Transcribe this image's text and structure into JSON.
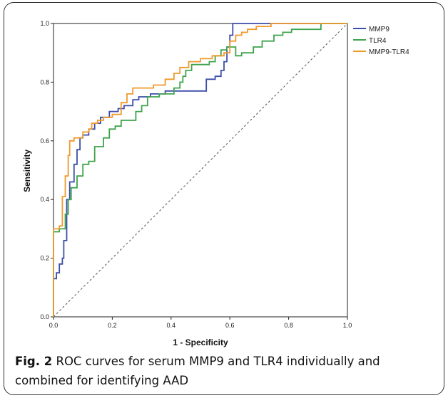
{
  "chart_data": {
    "type": "line",
    "xlabel": "1 - Specificity",
    "ylabel": "Sensitivity",
    "xlim": [
      0,
      1
    ],
    "ylim": [
      0,
      1
    ],
    "x_ticks": [
      "0.0",
      "0.2",
      "0.4",
      "0.6",
      "0.8",
      "1.0"
    ],
    "y_ticks": [
      "0.0",
      "0.2",
      "0.4",
      "0.6",
      "0.8",
      "1.0"
    ],
    "grid": false,
    "legend_position": "top-right",
    "reference_line": {
      "style": "dashed",
      "color": "#555555",
      "points": [
        [
          0,
          0
        ],
        [
          1,
          1
        ]
      ]
    },
    "series": [
      {
        "name": "MMP9",
        "color": "#3c4ea8",
        "points": [
          [
            0,
            0
          ],
          [
            0,
            0.13
          ],
          [
            0.01,
            0.13
          ],
          [
            0.01,
            0.15
          ],
          [
            0.02,
            0.15
          ],
          [
            0.02,
            0.18
          ],
          [
            0.03,
            0.18
          ],
          [
            0.03,
            0.2
          ],
          [
            0.035,
            0.2
          ],
          [
            0.035,
            0.26
          ],
          [
            0.045,
            0.26
          ],
          [
            0.045,
            0.4
          ],
          [
            0.055,
            0.4
          ],
          [
            0.055,
            0.46
          ],
          [
            0.07,
            0.46
          ],
          [
            0.07,
            0.52
          ],
          [
            0.08,
            0.52
          ],
          [
            0.08,
            0.57
          ],
          [
            0.09,
            0.57
          ],
          [
            0.09,
            0.61
          ],
          [
            0.1,
            0.61
          ],
          [
            0.1,
            0.62
          ],
          [
            0.12,
            0.62
          ],
          [
            0.12,
            0.64
          ],
          [
            0.14,
            0.64
          ],
          [
            0.14,
            0.66
          ],
          [
            0.16,
            0.66
          ],
          [
            0.16,
            0.68
          ],
          [
            0.19,
            0.68
          ],
          [
            0.19,
            0.7
          ],
          [
            0.22,
            0.7
          ],
          [
            0.22,
            0.71
          ],
          [
            0.24,
            0.71
          ],
          [
            0.24,
            0.72
          ],
          [
            0.27,
            0.72
          ],
          [
            0.27,
            0.74
          ],
          [
            0.29,
            0.74
          ],
          [
            0.29,
            0.75
          ],
          [
            0.33,
            0.75
          ],
          [
            0.33,
            0.76
          ],
          [
            0.38,
            0.76
          ],
          [
            0.38,
            0.77
          ],
          [
            0.52,
            0.77
          ],
          [
            0.52,
            0.81
          ],
          [
            0.55,
            0.81
          ],
          [
            0.55,
            0.82
          ],
          [
            0.57,
            0.82
          ],
          [
            0.57,
            0.84
          ],
          [
            0.58,
            0.84
          ],
          [
            0.58,
            0.87
          ],
          [
            0.59,
            0.87
          ],
          [
            0.59,
            0.92
          ],
          [
            0.6,
            0.92
          ],
          [
            0.6,
            0.96
          ],
          [
            0.61,
            0.96
          ],
          [
            0.61,
            1.0
          ],
          [
            1.0,
            1.0
          ]
        ]
      },
      {
        "name": "TLR4",
        "color": "#3fa34d",
        "points": [
          [
            0,
            0
          ],
          [
            0,
            0.29
          ],
          [
            0.02,
            0.29
          ],
          [
            0.02,
            0.3
          ],
          [
            0.04,
            0.3
          ],
          [
            0.04,
            0.35
          ],
          [
            0.05,
            0.35
          ],
          [
            0.05,
            0.4
          ],
          [
            0.06,
            0.4
          ],
          [
            0.06,
            0.44
          ],
          [
            0.08,
            0.44
          ],
          [
            0.08,
            0.48
          ],
          [
            0.1,
            0.48
          ],
          [
            0.1,
            0.52
          ],
          [
            0.12,
            0.52
          ],
          [
            0.12,
            0.53
          ],
          [
            0.14,
            0.53
          ],
          [
            0.14,
            0.58
          ],
          [
            0.17,
            0.58
          ],
          [
            0.17,
            0.61
          ],
          [
            0.19,
            0.61
          ],
          [
            0.19,
            0.64
          ],
          [
            0.21,
            0.64
          ],
          [
            0.21,
            0.65
          ],
          [
            0.23,
            0.65
          ],
          [
            0.23,
            0.67
          ],
          [
            0.28,
            0.67
          ],
          [
            0.28,
            0.7
          ],
          [
            0.3,
            0.7
          ],
          [
            0.3,
            0.72
          ],
          [
            0.32,
            0.72
          ],
          [
            0.32,
            0.75
          ],
          [
            0.36,
            0.75
          ],
          [
            0.36,
            0.76
          ],
          [
            0.41,
            0.76
          ],
          [
            0.41,
            0.78
          ],
          [
            0.43,
            0.78
          ],
          [
            0.43,
            0.8
          ],
          [
            0.44,
            0.8
          ],
          [
            0.44,
            0.82
          ],
          [
            0.45,
            0.82
          ],
          [
            0.45,
            0.84
          ],
          [
            0.47,
            0.84
          ],
          [
            0.47,
            0.86
          ],
          [
            0.53,
            0.86
          ],
          [
            0.53,
            0.87
          ],
          [
            0.55,
            0.87
          ],
          [
            0.55,
            0.89
          ],
          [
            0.57,
            0.89
          ],
          [
            0.57,
            0.91
          ],
          [
            0.59,
            0.91
          ],
          [
            0.59,
            0.92
          ],
          [
            0.62,
            0.92
          ],
          [
            0.62,
            0.89
          ],
          [
            0.64,
            0.89
          ],
          [
            0.64,
            0.9
          ],
          [
            0.68,
            0.9
          ],
          [
            0.68,
            0.92
          ],
          [
            0.71,
            0.92
          ],
          [
            0.71,
            0.94
          ],
          [
            0.75,
            0.94
          ],
          [
            0.75,
            0.96
          ],
          [
            0.78,
            0.96
          ],
          [
            0.78,
            0.97
          ],
          [
            0.81,
            0.97
          ],
          [
            0.81,
            0.98
          ],
          [
            0.91,
            0.98
          ],
          [
            0.91,
            1.0
          ],
          [
            1.0,
            1.0
          ]
        ]
      },
      {
        "name": "MMP9-TLR4",
        "color": "#ef9a2d",
        "points": [
          [
            0,
            0
          ],
          [
            0,
            0.3
          ],
          [
            0.02,
            0.3
          ],
          [
            0.02,
            0.31
          ],
          [
            0.03,
            0.31
          ],
          [
            0.03,
            0.41
          ],
          [
            0.04,
            0.41
          ],
          [
            0.04,
            0.48
          ],
          [
            0.05,
            0.48
          ],
          [
            0.05,
            0.55
          ],
          [
            0.055,
            0.55
          ],
          [
            0.055,
            0.6
          ],
          [
            0.07,
            0.6
          ],
          [
            0.07,
            0.61
          ],
          [
            0.1,
            0.61
          ],
          [
            0.1,
            0.63
          ],
          [
            0.12,
            0.63
          ],
          [
            0.12,
            0.64
          ],
          [
            0.13,
            0.64
          ],
          [
            0.13,
            0.66
          ],
          [
            0.15,
            0.66
          ],
          [
            0.15,
            0.67
          ],
          [
            0.17,
            0.67
          ],
          [
            0.17,
            0.68
          ],
          [
            0.2,
            0.68
          ],
          [
            0.2,
            0.69
          ],
          [
            0.23,
            0.69
          ],
          [
            0.23,
            0.73
          ],
          [
            0.25,
            0.73
          ],
          [
            0.25,
            0.76
          ],
          [
            0.27,
            0.76
          ],
          [
            0.27,
            0.78
          ],
          [
            0.34,
            0.78
          ],
          [
            0.34,
            0.79
          ],
          [
            0.38,
            0.79
          ],
          [
            0.38,
            0.81
          ],
          [
            0.41,
            0.81
          ],
          [
            0.41,
            0.83
          ],
          [
            0.43,
            0.83
          ],
          [
            0.43,
            0.85
          ],
          [
            0.46,
            0.85
          ],
          [
            0.46,
            0.87
          ],
          [
            0.5,
            0.87
          ],
          [
            0.5,
            0.88
          ],
          [
            0.54,
            0.88
          ],
          [
            0.54,
            0.89
          ],
          [
            0.58,
            0.89
          ],
          [
            0.58,
            0.9
          ],
          [
            0.6,
            0.9
          ],
          [
            0.6,
            0.94
          ],
          [
            0.62,
            0.94
          ],
          [
            0.62,
            0.96
          ],
          [
            0.64,
            0.96
          ],
          [
            0.64,
            0.97
          ],
          [
            0.66,
            0.97
          ],
          [
            0.66,
            0.98
          ],
          [
            0.69,
            0.98
          ],
          [
            0.69,
            0.99
          ],
          [
            0.74,
            0.99
          ],
          [
            0.74,
            1.0
          ],
          [
            1.0,
            1.0
          ]
        ]
      }
    ]
  },
  "caption": {
    "label": "Fig. 2",
    "text": " ROC curves for serum MMP9 and TLR4 individually and combined for identifying AAD"
  }
}
